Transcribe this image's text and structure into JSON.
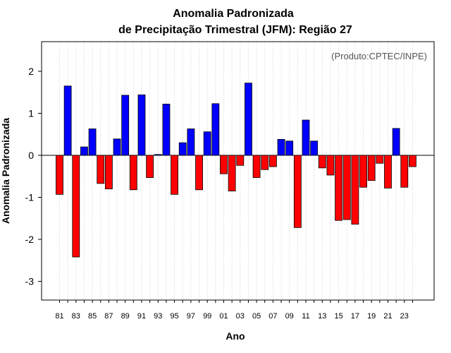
{
  "chart_data": {
    "type": "bar",
    "title": "Anomalia Padronizada",
    "subtitle": "de Precipitação Trimestral (JFM): Região 27",
    "annotation": "(Produto:CPTEC/INPE)",
    "xlabel": "Ano",
    "ylabel": "Anomalia Padronizada",
    "ylim": [
      -3.45,
      2.7
    ],
    "yticks": [
      -3,
      -2,
      -1,
      0,
      1,
      2
    ],
    "grid": "vertical-dotted",
    "positive_color": "#0000ff",
    "negative_color": "#ff0000",
    "categories": [
      "1981",
      "1982",
      "1983",
      "1984",
      "1985",
      "1986",
      "1987",
      "1988",
      "1989",
      "1990",
      "1991",
      "1992",
      "1993",
      "1994",
      "1995",
      "1996",
      "1997",
      "1998",
      "1999",
      "2000",
      "2001",
      "2002",
      "2003",
      "2004",
      "2005",
      "2006",
      "2007",
      "2008",
      "2009",
      "2010",
      "2011",
      "2012",
      "2013",
      "2014",
      "2015",
      "2016",
      "2017",
      "2018",
      "2019",
      "2020",
      "2021",
      "2022",
      "2023",
      "2024"
    ],
    "values": [
      -0.93,
      1.65,
      -2.42,
      0.2,
      0.63,
      -0.67,
      -0.8,
      0.39,
      1.43,
      -0.82,
      1.44,
      -0.53,
      0.02,
      1.22,
      -0.93,
      0.3,
      0.63,
      -0.82,
      0.56,
      1.23,
      -0.44,
      -0.85,
      -0.24,
      1.72,
      -0.53,
      -0.34,
      -0.27,
      0.38,
      0.34,
      -1.72,
      0.84,
      0.34,
      -0.3,
      -0.47,
      -1.55,
      -1.53,
      -1.64,
      -0.76,
      -0.6,
      -0.19,
      -0.78,
      0.64,
      -0.76,
      -0.27
    ],
    "x_tick_labels": [
      "81",
      "83",
      "85",
      "87",
      "89",
      "91",
      "93",
      "95",
      "97",
      "99",
      "01",
      "03",
      "05",
      "07",
      "09",
      "11",
      "13",
      "15",
      "17",
      "19",
      "21",
      "23"
    ]
  }
}
